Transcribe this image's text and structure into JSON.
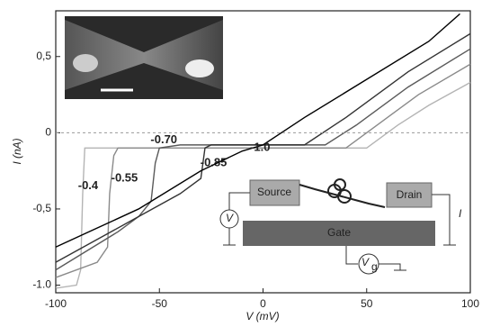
{
  "chart_data": {
    "type": "line",
    "x_label": "V (mV)",
    "y_label": "I (nA)",
    "xlim": [
      -100,
      100
    ],
    "xticks": [
      -100,
      -50,
      0,
      50,
      100
    ],
    "ylim": [
      -1.05,
      0.8
    ],
    "yticks": [
      {
        "value": -1.0,
        "label": "-1.0"
      },
      {
        "value": -0.5,
        "label": "-0,5"
      },
      0,
      {
        "value": 0.5,
        "label": "0,5"
      }
    ],
    "series": [
      {
        "name": "-0.4",
        "color": "#b4b4b4",
        "x": [
          -100,
          -90,
          -88,
          -87,
          -86,
          -80,
          50,
          65,
          80,
          100
        ],
        "values": [
          -1.02,
          -1.0,
          -0.9,
          -0.4,
          -0.1,
          -0.1,
          -0.1,
          0.05,
          0.18,
          0.33
        ]
      },
      {
        "name": "-0.55",
        "color": "#8a8a8a",
        "x": [
          -100,
          -80,
          -75,
          -74,
          -72,
          -70,
          40,
          55,
          75,
          100
        ],
        "values": [
          -0.95,
          -0.85,
          -0.75,
          -0.4,
          -0.15,
          -0.1,
          -0.1,
          0.05,
          0.25,
          0.45
        ]
      },
      {
        "name": "-0.70",
        "color": "#5a5a5a",
        "x": [
          -100,
          -70,
          -60,
          -54,
          -52,
          -50,
          -40,
          30,
          45,
          70,
          100
        ],
        "values": [
          -0.9,
          -0.65,
          -0.55,
          -0.45,
          -0.2,
          -0.1,
          -0.08,
          -0.08,
          0.05,
          0.3,
          0.55
        ]
      },
      {
        "name": "-0.85",
        "color": "#333333",
        "x": [
          -100,
          -60,
          -40,
          -30,
          -28,
          -25,
          20,
          40,
          70,
          100
        ],
        "values": [
          -0.85,
          -0.55,
          -0.4,
          -0.3,
          -0.1,
          -0.08,
          -0.08,
          0.1,
          0.4,
          0.65
        ]
      },
      {
        "name": "-1.0",
        "color": "#000000",
        "x": [
          -100,
          -60,
          -30,
          -10,
          0,
          20,
          50,
          80,
          95
        ],
        "values": [
          -0.75,
          -0.5,
          -0.25,
          -0.12,
          -0.08,
          0.1,
          0.35,
          0.6,
          0.78
        ]
      }
    ],
    "inset_labels": {
      "source": "Source",
      "drain": "Drain",
      "v": "V",
      "i": "I",
      "gate": "Gate",
      "vg": "V",
      "vg_sub": "g"
    }
  }
}
